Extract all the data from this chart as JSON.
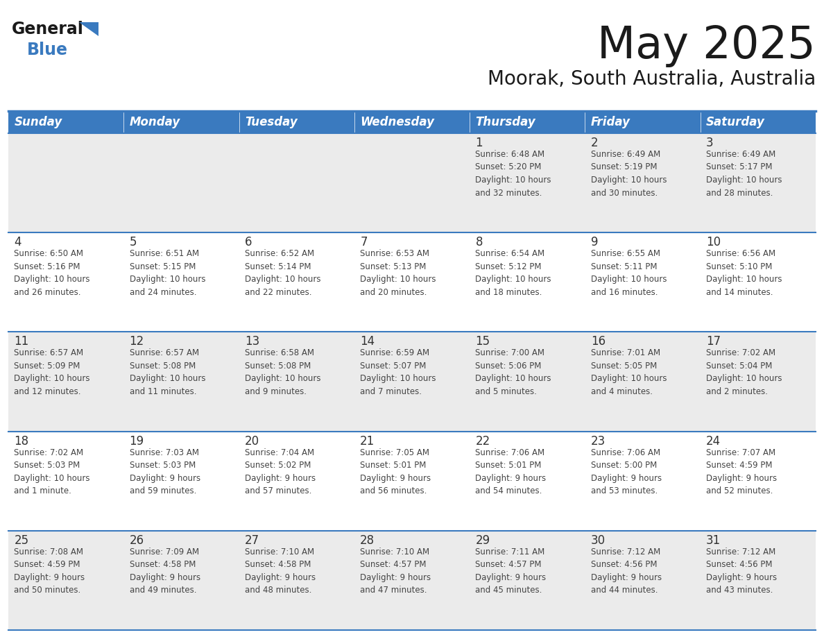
{
  "title": "May 2025",
  "subtitle": "Moorak, South Australia, Australia",
  "header_bg": "#3a7abf",
  "header_text_color": "#ffffff",
  "days_of_week": [
    "Sunday",
    "Monday",
    "Tuesday",
    "Wednesday",
    "Thursday",
    "Friday",
    "Saturday"
  ],
  "bg_color": "#ffffff",
  "row0_bg": "#ebebeb",
  "row1_bg": "#ffffff",
  "row2_bg": "#ebebeb",
  "row3_bg": "#ffffff",
  "row4_bg": "#ebebeb",
  "cell_text_color": "#444444",
  "day_num_color": "#333333",
  "border_color": "#3a7abf",
  "title_color": "#1a1a1a",
  "subtitle_color": "#1a1a1a",
  "logo_general_color": "#1a1a1a",
  "logo_blue_color": "#3a7abf",
  "weeks": [
    [
      {
        "day": "",
        "info": ""
      },
      {
        "day": "",
        "info": ""
      },
      {
        "day": "",
        "info": ""
      },
      {
        "day": "",
        "info": ""
      },
      {
        "day": "1",
        "info": "Sunrise: 6:48 AM\nSunset: 5:20 PM\nDaylight: 10 hours\nand 32 minutes."
      },
      {
        "day": "2",
        "info": "Sunrise: 6:49 AM\nSunset: 5:19 PM\nDaylight: 10 hours\nand 30 minutes."
      },
      {
        "day": "3",
        "info": "Sunrise: 6:49 AM\nSunset: 5:17 PM\nDaylight: 10 hours\nand 28 minutes."
      }
    ],
    [
      {
        "day": "4",
        "info": "Sunrise: 6:50 AM\nSunset: 5:16 PM\nDaylight: 10 hours\nand 26 minutes."
      },
      {
        "day": "5",
        "info": "Sunrise: 6:51 AM\nSunset: 5:15 PM\nDaylight: 10 hours\nand 24 minutes."
      },
      {
        "day": "6",
        "info": "Sunrise: 6:52 AM\nSunset: 5:14 PM\nDaylight: 10 hours\nand 22 minutes."
      },
      {
        "day": "7",
        "info": "Sunrise: 6:53 AM\nSunset: 5:13 PM\nDaylight: 10 hours\nand 20 minutes."
      },
      {
        "day": "8",
        "info": "Sunrise: 6:54 AM\nSunset: 5:12 PM\nDaylight: 10 hours\nand 18 minutes."
      },
      {
        "day": "9",
        "info": "Sunrise: 6:55 AM\nSunset: 5:11 PM\nDaylight: 10 hours\nand 16 minutes."
      },
      {
        "day": "10",
        "info": "Sunrise: 6:56 AM\nSunset: 5:10 PM\nDaylight: 10 hours\nand 14 minutes."
      }
    ],
    [
      {
        "day": "11",
        "info": "Sunrise: 6:57 AM\nSunset: 5:09 PM\nDaylight: 10 hours\nand 12 minutes."
      },
      {
        "day": "12",
        "info": "Sunrise: 6:57 AM\nSunset: 5:08 PM\nDaylight: 10 hours\nand 11 minutes."
      },
      {
        "day": "13",
        "info": "Sunrise: 6:58 AM\nSunset: 5:08 PM\nDaylight: 10 hours\nand 9 minutes."
      },
      {
        "day": "14",
        "info": "Sunrise: 6:59 AM\nSunset: 5:07 PM\nDaylight: 10 hours\nand 7 minutes."
      },
      {
        "day": "15",
        "info": "Sunrise: 7:00 AM\nSunset: 5:06 PM\nDaylight: 10 hours\nand 5 minutes."
      },
      {
        "day": "16",
        "info": "Sunrise: 7:01 AM\nSunset: 5:05 PM\nDaylight: 10 hours\nand 4 minutes."
      },
      {
        "day": "17",
        "info": "Sunrise: 7:02 AM\nSunset: 5:04 PM\nDaylight: 10 hours\nand 2 minutes."
      }
    ],
    [
      {
        "day": "18",
        "info": "Sunrise: 7:02 AM\nSunset: 5:03 PM\nDaylight: 10 hours\nand 1 minute."
      },
      {
        "day": "19",
        "info": "Sunrise: 7:03 AM\nSunset: 5:03 PM\nDaylight: 9 hours\nand 59 minutes."
      },
      {
        "day": "20",
        "info": "Sunrise: 7:04 AM\nSunset: 5:02 PM\nDaylight: 9 hours\nand 57 minutes."
      },
      {
        "day": "21",
        "info": "Sunrise: 7:05 AM\nSunset: 5:01 PM\nDaylight: 9 hours\nand 56 minutes."
      },
      {
        "day": "22",
        "info": "Sunrise: 7:06 AM\nSunset: 5:01 PM\nDaylight: 9 hours\nand 54 minutes."
      },
      {
        "day": "23",
        "info": "Sunrise: 7:06 AM\nSunset: 5:00 PM\nDaylight: 9 hours\nand 53 minutes."
      },
      {
        "day": "24",
        "info": "Sunrise: 7:07 AM\nSunset: 4:59 PM\nDaylight: 9 hours\nand 52 minutes."
      }
    ],
    [
      {
        "day": "25",
        "info": "Sunrise: 7:08 AM\nSunset: 4:59 PM\nDaylight: 9 hours\nand 50 minutes."
      },
      {
        "day": "26",
        "info": "Sunrise: 7:09 AM\nSunset: 4:58 PM\nDaylight: 9 hours\nand 49 minutes."
      },
      {
        "day": "27",
        "info": "Sunrise: 7:10 AM\nSunset: 4:58 PM\nDaylight: 9 hours\nand 48 minutes."
      },
      {
        "day": "28",
        "info": "Sunrise: 7:10 AM\nSunset: 4:57 PM\nDaylight: 9 hours\nand 47 minutes."
      },
      {
        "day": "29",
        "info": "Sunrise: 7:11 AM\nSunset: 4:57 PM\nDaylight: 9 hours\nand 45 minutes."
      },
      {
        "day": "30",
        "info": "Sunrise: 7:12 AM\nSunset: 4:56 PM\nDaylight: 9 hours\nand 44 minutes."
      },
      {
        "day": "31",
        "info": "Sunrise: 7:12 AM\nSunset: 4:56 PM\nDaylight: 9 hours\nand 43 minutes."
      }
    ]
  ]
}
